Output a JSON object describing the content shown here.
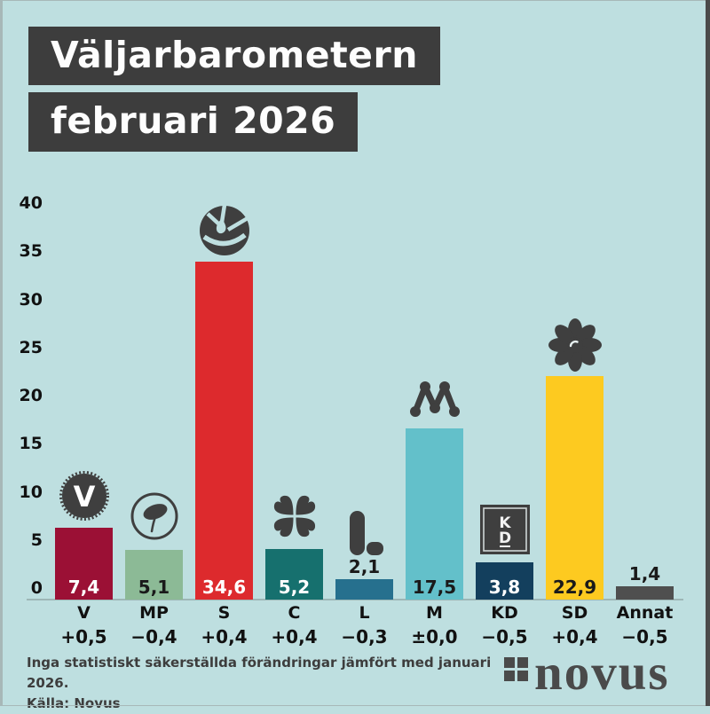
{
  "title": {
    "line1": "Väljarbarometern",
    "line2": "februari 2026"
  },
  "chart_data": {
    "type": "bar",
    "title": "Väljarbarometern februari 2026",
    "xlabel": "",
    "ylabel": "",
    "ylim": [
      0,
      40
    ],
    "yticks": [
      0,
      5,
      10,
      15,
      20,
      25,
      30,
      35,
      40
    ],
    "grid": false,
    "legend": "none",
    "categories": [
      "V",
      "MP",
      "S",
      "C",
      "L",
      "M",
      "KD",
      "SD",
      "Annat"
    ],
    "values": [
      7.4,
      5.1,
      34.6,
      5.2,
      2.1,
      17.5,
      3.8,
      22.9,
      1.4
    ],
    "value_labels": [
      "7,4",
      "5,1",
      "34,6",
      "5,2",
      "2,1",
      "17,5",
      "3,8",
      "22,9",
      "1,4"
    ],
    "change_labels": [
      "+0,5",
      "−0,4",
      "+0,4",
      "+0,4",
      "−0,3",
      "±0,0",
      "−0,5",
      "+0,4",
      "−0,5"
    ],
    "bar_colors": [
      "#9b1035",
      "#8cba96",
      "#dd2a2d",
      "#16706e",
      "#26708e",
      "#63c0ca",
      "#133f5d",
      "#fdca20",
      "#4f4f4f"
    ],
    "value_text_colors": [
      "#ffffff",
      "#1a1a1a",
      "#ffffff",
      "#ffffff",
      "#1a1a1a",
      "#1a1a1a",
      "#ffffff",
      "#1a1a1a",
      "#1a1a1a"
    ],
    "value_label_position": [
      "inside",
      "inside",
      "inside",
      "inside",
      "above",
      "inside",
      "inside",
      "inside",
      "above"
    ],
    "icons": [
      "v-carnation-icon",
      "mp-dandelion-icon",
      "s-rose-icon",
      "c-clover-icon",
      "l-letter-icon",
      "m-letter-dots-icon",
      "kd-square-icon",
      "sd-anemone-icon",
      ""
    ]
  },
  "footer": {
    "note": "Inga statistiskt säkerställda förändringar jämfört med januari 2026.",
    "source": "Källa: Novus",
    "logo_text": "novus"
  },
  "colors": {
    "background": "#bedfe0",
    "title_box": "#3d3d3d",
    "icon": "#3f3f3f",
    "axis_line": "#9db6b6",
    "logo": "#4a4a4a"
  }
}
